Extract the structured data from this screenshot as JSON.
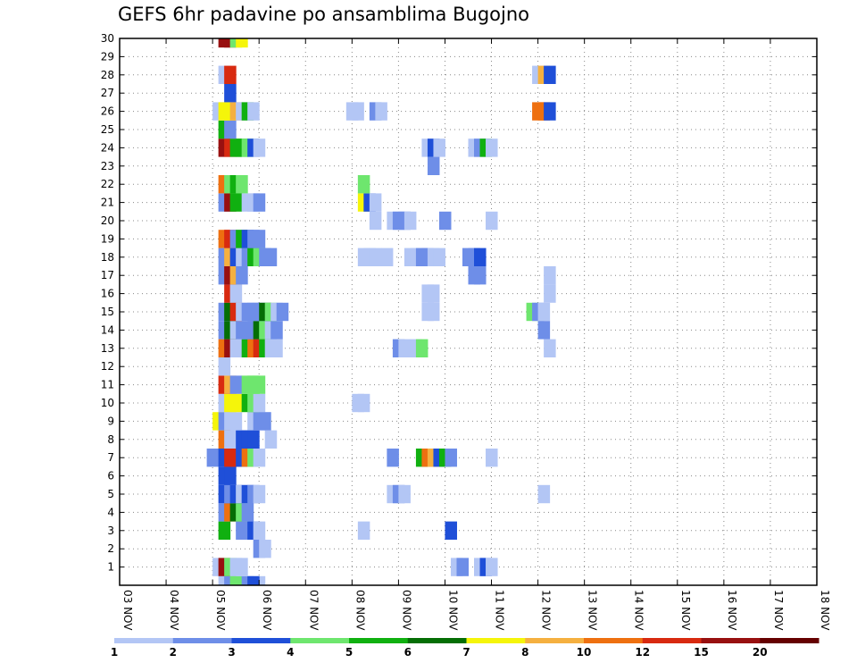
{
  "chart_data": {
    "type": "heatmap",
    "title": "GEFS 6hr padavine po ansamblima Bugojno",
    "xlabel": "",
    "ylabel": "",
    "x_ticks": [
      "03 NOV",
      "04 NOV",
      "05 NOV",
      "06 NOV",
      "07 NOV",
      "08 NOV",
      "09 NOV",
      "10 NOV",
      "11 NOV",
      "12 NOV",
      "13 NOV",
      "14 NOV",
      "15 NOV",
      "16 NOV",
      "17 NOV",
      "18 NOV"
    ],
    "y_ticks": [
      "1",
      "2",
      "3",
      "4",
      "5",
      "6",
      "7",
      "8",
      "9",
      "10",
      "11",
      "12",
      "13",
      "14",
      "15",
      "16",
      "17",
      "18",
      "19",
      "20",
      "21",
      "22",
      "23",
      "24",
      "25",
      "26",
      "27",
      "28",
      "29",
      "30"
    ],
    "x_steps_per_day": 4,
    "y_range": [
      0,
      30
    ],
    "grid": true,
    "colorbar": {
      "labels": [
        "1",
        "2",
        "3",
        "4",
        "5",
        "6",
        "7",
        "8",
        "10",
        "12",
        "15",
        "20"
      ],
      "colors": [
        "#b3c6f5",
        "#6e8ee8",
        "#1f4fd8",
        "#6ee66e",
        "#10b010",
        "#056e05",
        "#f5f50a",
        "#f5b040",
        "#ee7010",
        "#d82a10",
        "#981010",
        "#650000"
      ]
    },
    "cells": [
      [
        0,
        8.5,
        0
      ],
      [
        0,
        9.0,
        1
      ],
      [
        0,
        9.5,
        3
      ],
      [
        0,
        10.5,
        1
      ],
      [
        0,
        11.5,
        0
      ],
      [
        0,
        11.0,
        2
      ],
      [
        1,
        8.0,
        0
      ],
      [
        1,
        8.5,
        10
      ],
      [
        1,
        9.0,
        3
      ],
      [
        1,
        9.5,
        0
      ],
      [
        1,
        10.0,
        0
      ],
      [
        1,
        28.5,
        0
      ],
      [
        1,
        29.0,
        1
      ],
      [
        1,
        30.5,
        0
      ],
      [
        1,
        31.0,
        2
      ],
      [
        1,
        31.5,
        0
      ],
      [
        2,
        11.5,
        1
      ],
      [
        2,
        12.0,
        0
      ],
      [
        3,
        8.5,
        4
      ],
      [
        3,
        10.0,
        1
      ],
      [
        3,
        10.5,
        1
      ],
      [
        3,
        11.0,
        2
      ],
      [
        3,
        11.5,
        0
      ],
      [
        3,
        20.5,
        0
      ],
      [
        3,
        28.0,
        2
      ],
      [
        4,
        8.5,
        1
      ],
      [
        4,
        9.0,
        8
      ],
      [
        4,
        9.5,
        5
      ],
      [
        4,
        10.0,
        3
      ],
      [
        4,
        10.5,
        1
      ],
      [
        5,
        8.5,
        2
      ],
      [
        5,
        9.0,
        1
      ],
      [
        5,
        9.5,
        2
      ],
      [
        5,
        10.0,
        0
      ],
      [
        5,
        10.5,
        2
      ],
      [
        5,
        11.0,
        1
      ],
      [
        5,
        11.5,
        0
      ],
      [
        5,
        23.0,
        0
      ],
      [
        5,
        23.5,
        1
      ],
      [
        5,
        24.0,
        0
      ],
      [
        5,
        36.0,
        0
      ],
      [
        6,
        8.5,
        2
      ],
      [
        6,
        9.0,
        2
      ],
      [
        7,
        7.5,
        1
      ],
      [
        7,
        8.5,
        2
      ],
      [
        7,
        9.0,
        9
      ],
      [
        7,
        9.5,
        9
      ],
      [
        7,
        10.0,
        2
      ],
      [
        7,
        10.5,
        8
      ],
      [
        7,
        11.0,
        3
      ],
      [
        7,
        11.5,
        0
      ],
      [
        7,
        23.0,
        1
      ],
      [
        7,
        25.5,
        4
      ],
      [
        7,
        26.0,
        8
      ],
      [
        7,
        26.5,
        7
      ],
      [
        7,
        27.0,
        2
      ],
      [
        7,
        27.5,
        4
      ],
      [
        7,
        28.0,
        1
      ],
      [
        7,
        31.5,
        0
      ],
      [
        8,
        8.5,
        8
      ],
      [
        8,
        9.0,
        0
      ],
      [
        8,
        9.5,
        0
      ],
      [
        8,
        10.0,
        2
      ],
      [
        8,
        10.5,
        2
      ],
      [
        8,
        11.0,
        2
      ],
      [
        8,
        12.5,
        0
      ],
      [
        9,
        8.0,
        6
      ],
      [
        9,
        8.5,
        1
      ],
      [
        9,
        9.0,
        0
      ],
      [
        9,
        9.5,
        0
      ],
      [
        9,
        11.0,
        0
      ],
      [
        9,
        11.5,
        1
      ],
      [
        9,
        12.0,
        1
      ],
      [
        10,
        8.5,
        0
      ],
      [
        10,
        9.0,
        6
      ],
      [
        10,
        9.5,
        6
      ],
      [
        10,
        10.5,
        4
      ],
      [
        10,
        11.0,
        3
      ],
      [
        10,
        11.5,
        0
      ],
      [
        10,
        20.0,
        0
      ],
      [
        10,
        20.5,
        0
      ],
      [
        11,
        8.5,
        9
      ],
      [
        11,
        9.0,
        7
      ],
      [
        11,
        9.5,
        1
      ],
      [
        11,
        10.5,
        3
      ],
      [
        11,
        11.0,
        3
      ],
      [
        11,
        11.5,
        3
      ],
      [
        12,
        8.5,
        0
      ],
      [
        13,
        8.5,
        8
      ],
      [
        13,
        9.0,
        10
      ],
      [
        13,
        9.5,
        0
      ],
      [
        13,
        10.0,
        0
      ],
      [
        13,
        10.5,
        4
      ],
      [
        13,
        11.0,
        8
      ],
      [
        13,
        11.5,
        9
      ],
      [
        13,
        12.0,
        4
      ],
      [
        13,
        12.5,
        0
      ],
      [
        13,
        13.0,
        0
      ],
      [
        13,
        23.5,
        1
      ],
      [
        13,
        24.0,
        0
      ],
      [
        13,
        25.0,
        0
      ],
      [
        13,
        25.5,
        3
      ],
      [
        13,
        36.5,
        0
      ],
      [
        14,
        8.5,
        1
      ],
      [
        14,
        9.0,
        5
      ],
      [
        14,
        9.5,
        0
      ],
      [
        14,
        10.0,
        1
      ],
      [
        14,
        10.5,
        1
      ],
      [
        14,
        11.0,
        1
      ],
      [
        14,
        11.5,
        5
      ],
      [
        14,
        12.0,
        3
      ],
      [
        14,
        12.5,
        0
      ],
      [
        14,
        13.0,
        1
      ],
      [
        14,
        36.0,
        1
      ],
      [
        15,
        8.5,
        1
      ],
      [
        15,
        9.0,
        5
      ],
      [
        15,
        9.5,
        9
      ],
      [
        15,
        10.0,
        0
      ],
      [
        15,
        10.5,
        1
      ],
      [
        15,
        11.0,
        1
      ],
      [
        15,
        11.5,
        1
      ],
      [
        15,
        12.0,
        5
      ],
      [
        15,
        12.5,
        3
      ],
      [
        15,
        13.0,
        0
      ],
      [
        15,
        13.5,
        1
      ],
      [
        15,
        26.0,
        0
      ],
      [
        15,
        26.5,
        0
      ],
      [
        15,
        35.0,
        3
      ],
      [
        15,
        35.5,
        1
      ],
      [
        15,
        36.0,
        0
      ],
      [
        16,
        9.0,
        9
      ],
      [
        16,
        9.5,
        0
      ],
      [
        16,
        26.0,
        0
      ],
      [
        16,
        26.5,
        0
      ],
      [
        16,
        36.5,
        0
      ],
      [
        17,
        8.5,
        1
      ],
      [
        17,
        9.0,
        10
      ],
      [
        17,
        9.5,
        7
      ],
      [
        17,
        10.0,
        1
      ],
      [
        17,
        30.0,
        1
      ],
      [
        17,
        30.5,
        1
      ],
      [
        17,
        36.5,
        0
      ],
      [
        18,
        8.5,
        1
      ],
      [
        18,
        9.0,
        7
      ],
      [
        18,
        9.5,
        2
      ],
      [
        18,
        10.0,
        0
      ],
      [
        18,
        10.5,
        1
      ],
      [
        18,
        11.0,
        4
      ],
      [
        18,
        11.5,
        3
      ],
      [
        18,
        12.0,
        1
      ],
      [
        18,
        12.5,
        1
      ],
      [
        18,
        20.5,
        0
      ],
      [
        18,
        21.0,
        0
      ],
      [
        18,
        21.5,
        0
      ],
      [
        18,
        22.5,
        0
      ],
      [
        18,
        24.5,
        0
      ],
      [
        18,
        25.0,
        0
      ],
      [
        18,
        25.5,
        1
      ],
      [
        18,
        26.0,
        1
      ],
      [
        18,
        26.5,
        0
      ],
      [
        18,
        27.0,
        0
      ],
      [
        18,
        29.5,
        1
      ],
      [
        18,
        30.0,
        1
      ],
      [
        18,
        30.5,
        2
      ],
      [
        19,
        8.5,
        8
      ],
      [
        19,
        9.0,
        9
      ],
      [
        19,
        9.5,
        1
      ],
      [
        19,
        10.0,
        4
      ],
      [
        19,
        10.5,
        2
      ],
      [
        19,
        11.0,
        1
      ],
      [
        19,
        11.5,
        1
      ],
      [
        20,
        21.5,
        0
      ],
      [
        20,
        23.0,
        0
      ],
      [
        20,
        23.5,
        1
      ],
      [
        20,
        24.0,
        1
      ],
      [
        20,
        24.5,
        0
      ],
      [
        20,
        27.5,
        1
      ],
      [
        20,
        31.5,
        0
      ],
      [
        21,
        8.5,
        1
      ],
      [
        21,
        9.0,
        10
      ],
      [
        21,
        9.5,
        4
      ],
      [
        21,
        10.5,
        0
      ],
      [
        21,
        11.0,
        0
      ],
      [
        21,
        11.5,
        1
      ],
      [
        21,
        20.5,
        6
      ],
      [
        21,
        21.0,
        2
      ],
      [
        21,
        21.5,
        0
      ],
      [
        22,
        8.5,
        8
      ],
      [
        22,
        9.0,
        3
      ],
      [
        22,
        9.5,
        4
      ],
      [
        22,
        10.0,
        3
      ],
      [
        22,
        20.5,
        3
      ],
      [
        23,
        26.5,
        1
      ],
      [
        24,
        8.5,
        10
      ],
      [
        24,
        9.0,
        9
      ],
      [
        24,
        9.5,
        4
      ],
      [
        24,
        10.0,
        4
      ],
      [
        24,
        10.5,
        3
      ],
      [
        24,
        11.0,
        2
      ],
      [
        24,
        11.5,
        0
      ],
      [
        24,
        26.0,
        0
      ],
      [
        24,
        26.5,
        2
      ],
      [
        24,
        27.0,
        0
      ],
      [
        24,
        30.0,
        0
      ],
      [
        24,
        30.5,
        1
      ],
      [
        24,
        31.0,
        4
      ],
      [
        24,
        31.5,
        0
      ],
      [
        25,
        8.5,
        4
      ],
      [
        25,
        9.0,
        1
      ],
      [
        26,
        8.0,
        0
      ],
      [
        26,
        8.5,
        6
      ],
      [
        26,
        9.0,
        6
      ],
      [
        26,
        9.5,
        7
      ],
      [
        26,
        10.0,
        0
      ],
      [
        26,
        10.5,
        4
      ],
      [
        26,
        11.0,
        0
      ],
      [
        26,
        19.5,
        0
      ],
      [
        26,
        20.0,
        0
      ],
      [
        26,
        21.5,
        1
      ],
      [
        26,
        22.0,
        0
      ],
      [
        26,
        35.5,
        8
      ],
      [
        26,
        36.0,
        8
      ],
      [
        26,
        36.5,
        2
      ],
      [
        27,
        9.0,
        2
      ],
      [
        28,
        8.5,
        0
      ],
      [
        28,
        9.0,
        9
      ],
      [
        28,
        35.5,
        0
      ],
      [
        28,
        36.0,
        7
      ],
      [
        28,
        36.5,
        2
      ],
      [
        30,
        8.5,
        10
      ],
      [
        30,
        9.0,
        10
      ],
      [
        30,
        9.5,
        3
      ],
      [
        30,
        10.0,
        6
      ]
    ]
  }
}
